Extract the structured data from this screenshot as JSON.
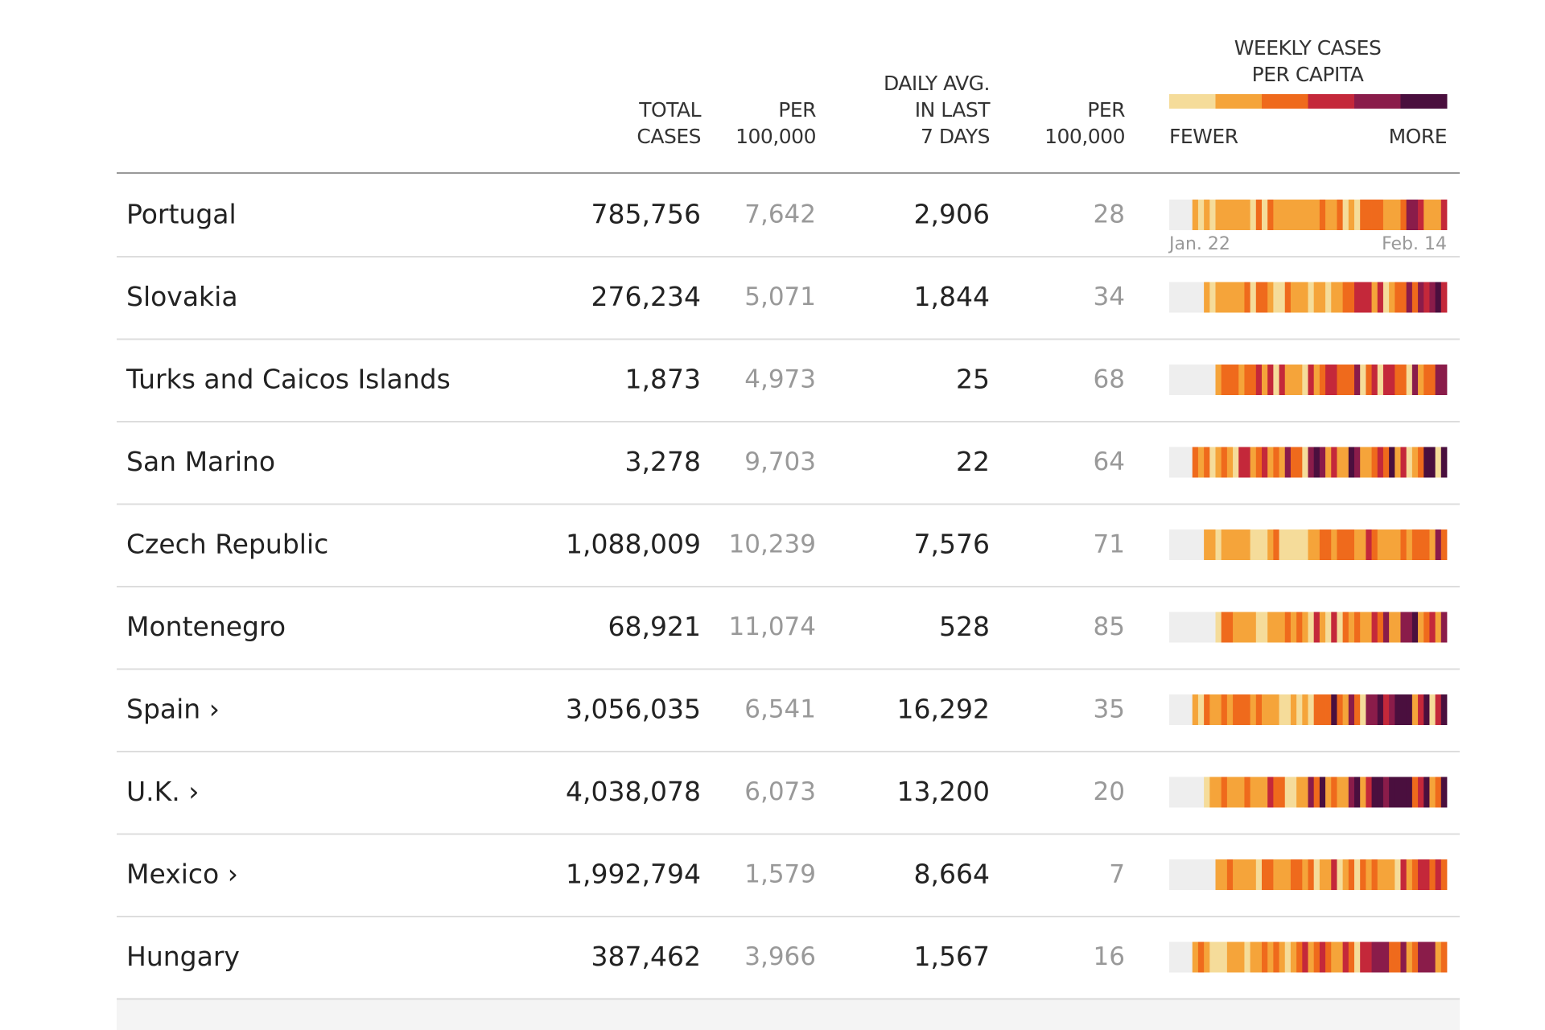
{
  "header": {
    "columns": [
      [
        "TOTAL",
        "CASES"
      ],
      [
        "PER",
        "100,000"
      ],
      [
        "DAILY AVG.",
        "IN LAST",
        "7 DAYS"
      ],
      [
        "PER",
        "100,000"
      ]
    ],
    "legend": {
      "title": [
        "WEEKLY CASES",
        "PER CAPITA"
      ],
      "colors": [
        "#f5dc9a",
        "#f5a43a",
        "#ef6a1c",
        "#c4283a",
        "#8a1c4a",
        "#4a0f3e"
      ],
      "low": "FEWER",
      "high": "MORE"
    }
  },
  "date_range": [
    "Jan. 22",
    "Feb. 14"
  ],
  "rows": [
    [
      "Portugal",
      "785,756",
      "7,642",
      "2,906",
      "28"
    ],
    [
      "Slovakia",
      "276,234",
      "5,071",
      "1,844",
      "34"
    ],
    [
      "Turks and Caicos Islands",
      "1,873",
      "4,973",
      "25",
      "68"
    ],
    [
      "San Marino",
      "3,278",
      "9,703",
      "22",
      "64"
    ],
    [
      "Czech Republic",
      "1,088,009",
      "10,239",
      "7,576",
      "71"
    ],
    [
      "Montenegro",
      "68,921",
      "11,074",
      "528",
      "85"
    ],
    [
      "Spain ›",
      "3,056,035",
      "6,541",
      "16,292",
      "35"
    ],
    [
      "U.K. ›",
      "4,038,078",
      "6,073",
      "13,200",
      "20"
    ],
    [
      "Mexico ›",
      "1,992,794",
      "1,579",
      "8,664",
      "7"
    ],
    [
      "Hungary",
      "387,462",
      "3,966",
      "1,567",
      "16"
    ]
  ]
}
